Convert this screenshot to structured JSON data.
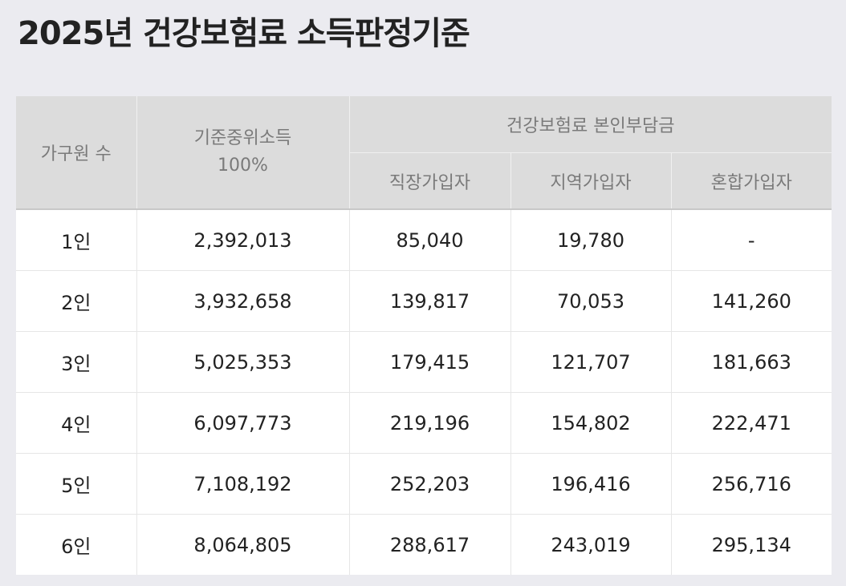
{
  "title": "2025년 건강보험료 소득판정기준",
  "table": {
    "header": {
      "household": "가구원 수",
      "median_income_line1": "기준중위소득",
      "median_income_line2": "100%",
      "premium_group": "건강보험료 본인부담금",
      "employee": "직장가입자",
      "regional": "지역가입자",
      "mixed": "혼합가입자"
    },
    "rows": [
      {
        "household": "1인",
        "median_income": "2,392,013",
        "employee": "85,040",
        "regional": "19,780",
        "mixed": "-"
      },
      {
        "household": "2인",
        "median_income": "3,932,658",
        "employee": "139,817",
        "regional": "70,053",
        "mixed": "141,260"
      },
      {
        "household": "3인",
        "median_income": "5,025,353",
        "employee": "179,415",
        "regional": "121,707",
        "mixed": "181,663"
      },
      {
        "household": "4인",
        "median_income": "6,097,773",
        "employee": "219,196",
        "regional": "154,802",
        "mixed": "222,471"
      },
      {
        "household": "5인",
        "median_income": "7,108,192",
        "employee": "252,203",
        "regional": "196,416",
        "mixed": "256,716"
      },
      {
        "household": "6인",
        "median_income": "8,064,805",
        "employee": "288,617",
        "regional": "243,019",
        "mixed": "295,134"
      }
    ]
  }
}
